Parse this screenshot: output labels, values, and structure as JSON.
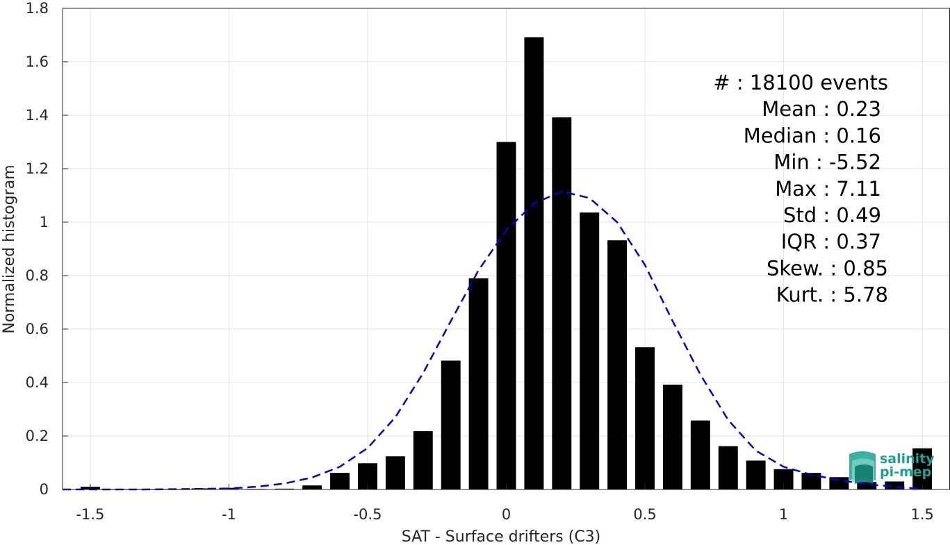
{
  "chart_data": {
    "type": "bar",
    "xlabel": "SAT - Surface drifters (C3)",
    "ylabel": "Normalized histogram",
    "xlim": [
      -1.6,
      1.6
    ],
    "ylim": [
      0,
      1.8
    ],
    "xticks": [
      -1.5,
      -1,
      -0.5,
      0,
      0.5,
      1,
      1.5
    ],
    "xtick_labels": [
      "-1.5",
      "-1",
      "-0.5",
      "0",
      "0.5",
      "1",
      "1.5"
    ],
    "yticks": [
      0,
      0.2,
      0.4,
      0.6,
      0.8,
      1,
      1.2,
      1.4,
      1.6,
      1.8
    ],
    "ytick_labels": [
      "0",
      "0.2",
      "0.4",
      "0.6",
      "0.8",
      "1",
      "1.2",
      "1.4",
      "1.6",
      "1.8"
    ],
    "grid": true,
    "bar_color": "#000000",
    "bin_width": 0.1,
    "x": [
      -1.5,
      -1.4,
      -1.3,
      -1.2,
      -1.1,
      -1.0,
      -0.9,
      -0.8,
      -0.7,
      -0.6,
      -0.5,
      -0.4,
      -0.3,
      -0.2,
      -0.1,
      0.0,
      0.1,
      0.2,
      0.3,
      0.4,
      0.5,
      0.6,
      0.7,
      0.8,
      0.9,
      1.0,
      1.1,
      1.2,
      1.3,
      1.4,
      1.5
    ],
    "values": [
      0.01,
      0.002,
      0.002,
      0.002,
      0.004,
      0.006,
      0.002,
      0.003,
      0.015,
      0.062,
      0.098,
      0.124,
      0.218,
      0.482,
      0.79,
      1.3,
      1.692,
      1.392,
      1.036,
      0.932,
      0.532,
      0.392,
      0.258,
      0.162,
      0.108,
      0.076,
      0.062,
      0.046,
      0.028,
      0.03,
      0.154
    ],
    "series": [
      {
        "type": "line",
        "style": "dashed",
        "color": "#0000dd",
        "x": [
          -1.6,
          -1.5,
          -1.4,
          -1.3,
          -1.2,
          -1.1,
          -1.0,
          -0.9,
          -0.8,
          -0.7,
          -0.6,
          -0.5,
          -0.4,
          -0.3,
          -0.2,
          -0.1,
          0.0,
          0.1,
          0.2,
          0.3,
          0.4,
          0.5,
          0.6,
          0.7,
          0.8,
          0.9,
          1.0,
          1.1,
          1.2,
          1.3,
          1.4,
          1.5
        ],
        "values": [
          0.0,
          0.0,
          0.0,
          0.0,
          0.001,
          0.002,
          0.004,
          0.01,
          0.022,
          0.045,
          0.085,
          0.155,
          0.27,
          0.435,
          0.63,
          0.82,
          0.97,
          1.07,
          1.115,
          1.09,
          1.0,
          0.84,
          0.63,
          0.43,
          0.26,
          0.145,
          0.085,
          0.055,
          0.035,
          0.02,
          0.01,
          0.002
        ]
      }
    ],
    "stats": [
      {
        "label": "#  : 18100 events"
      },
      {
        "label": "Mean : 0.23"
      },
      {
        "label": "Median : 0.16"
      },
      {
        "label": "Min : -5.52"
      },
      {
        "label": "Max : 7.11"
      },
      {
        "label": "Std : 0.49"
      },
      {
        "label": "IQR : 0.37"
      },
      {
        "label": "Skew. : 0.85"
      },
      {
        "label": "Kurt. : 5.78"
      }
    ]
  },
  "logo": {
    "line1": "salinity",
    "line2": "pi-mep",
    "color": "#1aa391"
  }
}
